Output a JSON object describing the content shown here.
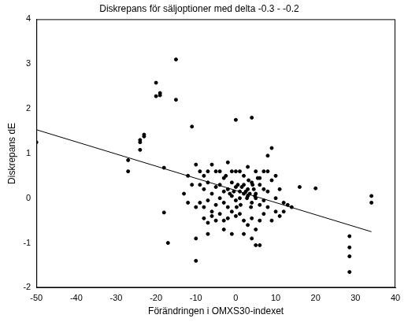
{
  "chart_data": {
    "type": "scatter",
    "title": "Diskrepans för säljoptioner med delta -0.3 - -0.2",
    "x_label": "Förändringen i OMXS30-indexet",
    "y_label": "Diskrepans dE",
    "xlim": [
      -50,
      40
    ],
    "xticks": [
      -50,
      -40,
      -30,
      -20,
      -10,
      0,
      10,
      20,
      30,
      40
    ],
    "ylim": [
      -2,
      4
    ],
    "yticks": [
      -2,
      -1,
      0,
      1,
      2,
      3,
      4
    ],
    "grid": false,
    "series": [
      {
        "type": "scatter",
        "color": "#000000",
        "marker": "circle",
        "x": [
          -50,
          -27,
          -27,
          -24,
          -24,
          -24,
          -23,
          -23,
          -20,
          -20,
          -19,
          -19,
          -15,
          -15,
          -18,
          -18,
          -17,
          -11,
          -13,
          -12,
          -10,
          -10,
          -10,
          0,
          4,
          8,
          9,
          16,
          20,
          28.5,
          28.5,
          28.5,
          28.5,
          34,
          34,
          12,
          14,
          13,
          11,
          -9,
          -8,
          -7,
          -6,
          -5,
          -4,
          -3,
          -2,
          -1,
          0,
          1,
          2,
          3,
          5,
          6,
          7,
          8,
          -9,
          -8,
          -7,
          -6,
          -5,
          -4,
          -3,
          -2,
          -1,
          0,
          1,
          2,
          3,
          4,
          5,
          6,
          7,
          8,
          9,
          -9,
          -8,
          -7,
          -6,
          -5,
          -4,
          -3,
          -2,
          -1,
          0,
          1,
          2,
          3,
          4,
          5,
          6,
          7,
          8,
          10,
          -8,
          -7,
          -6,
          -5,
          -4,
          -3,
          -2,
          -1,
          0,
          1,
          2,
          3,
          4,
          5,
          6,
          7,
          -7,
          -3,
          -1,
          2,
          4,
          6,
          5,
          0.5,
          1.5,
          2.5,
          3.5,
          4.5,
          3.2,
          4.2,
          2.8,
          3.8,
          1.2,
          4.8,
          5.5,
          -1.5,
          -0.5,
          0.2,
          -2.5,
          -11,
          -12,
          -10,
          10,
          11,
          12,
          9,
          10
        ],
        "values": [
          1.25,
          0.85,
          0.6,
          1.3,
          1.25,
          1.08,
          1.42,
          1.38,
          2.58,
          2.28,
          2.35,
          2.3,
          3.1,
          2.2,
          0.68,
          -0.32,
          -1.0,
          1.6,
          0.1,
          0.5,
          0.75,
          -0.9,
          -1.4,
          1.75,
          1.8,
          0.95,
          1.12,
          0.25,
          0.22,
          -0.85,
          -1.1,
          -1.3,
          -1.65,
          0.05,
          -0.1,
          -0.3,
          -0.2,
          -0.15,
          -0.4,
          0.6,
          0.5,
          0.6,
          0.75,
          0.6,
          0.6,
          0.45,
          0.8,
          0.6,
          0.6,
          0.6,
          0.5,
          0.7,
          0.6,
          0.45,
          0.6,
          0.6,
          0.3,
          0.2,
          0.35,
          0.1,
          0.25,
          0.3,
          0.15,
          0.2,
          0.35,
          0.25,
          0.15,
          0.3,
          0.2,
          0.35,
          0.1,
          0.3,
          0.2,
          0.15,
          0.4,
          -0.1,
          -0.2,
          -0.05,
          -0.3,
          -0.15,
          0,
          -0.1,
          -0.2,
          0.05,
          -0.05,
          0,
          0.1,
          0.05,
          -0.1,
          0,
          -0.15,
          -0.05,
          -0.2,
          0,
          -0.45,
          -0.55,
          -0.4,
          -0.5,
          -0.35,
          -0.5,
          -0.45,
          -0.3,
          -0.4,
          -0.35,
          -0.5,
          -0.6,
          -0.45,
          -0.7,
          -0.5,
          -0.35,
          -0.8,
          -0.7,
          -0.8,
          -0.8,
          -0.9,
          -1.05,
          -1.05,
          0.3,
          0.25,
          0.15,
          0.1,
          0.2,
          0.4,
          0.3,
          0,
          -0.2,
          -0.15,
          0.05,
          0.45,
          0.1,
          0.15,
          -0.2,
          0.5,
          0.3,
          -0.1,
          -0.2,
          0.5,
          0.2,
          -0.1,
          -0.5,
          -0.3
        ]
      },
      {
        "type": "line",
        "color": "#000000",
        "line_style": "solid",
        "x": [
          -50,
          34
        ],
        "values": [
          1.53,
          -0.75
        ]
      }
    ]
  }
}
